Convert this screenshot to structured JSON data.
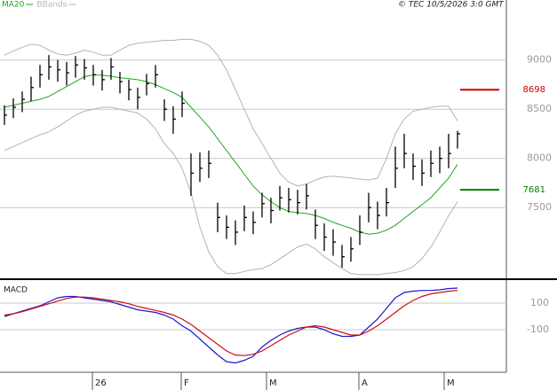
{
  "chart_data": [
    {
      "type": "ohlc",
      "copyright": "© TEC 10/5/2026 3:0 GMT",
      "xlim": [
        -0.5,
        56.5
      ],
      "ylim": [
        6790,
        9610
      ],
      "yticks": [
        7500,
        8000,
        8500,
        9000
      ],
      "grid": true,
      "bar_color": "#000000",
      "high": [
        8540,
        8610,
        8680,
        8830,
        8950,
        9050,
        9000,
        8980,
        9040,
        9010,
        8950,
        8900,
        9020,
        8880,
        8800,
        8720,
        8860,
        8950,
        8600,
        8530,
        8680,
        8050,
        8060,
        8080,
        7550,
        7420,
        7370,
        7520,
        7460,
        7650,
        7600,
        7720,
        7700,
        7680,
        7740,
        7480,
        7340,
        7280,
        7120,
        7200,
        7420,
        7650,
        7560,
        7700,
        8120,
        8250,
        8050,
        7990,
        8080,
        8120,
        8250,
        8280
      ],
      "low": [
        8340,
        8410,
        8470,
        8580,
        8720,
        8800,
        8780,
        8740,
        8820,
        8800,
        8740,
        8690,
        8800,
        8660,
        8590,
        8500,
        8640,
        8720,
        8380,
        8250,
        8420,
        7620,
        7760,
        7800,
        7250,
        7180,
        7120,
        7260,
        7230,
        7400,
        7340,
        7470,
        7450,
        7430,
        7480,
        7180,
        7060,
        7010,
        6890,
        6950,
        7120,
        7350,
        7280,
        7410,
        7700,
        7900,
        7780,
        7720,
        7810,
        7850,
        7900,
        8100
      ],
      "close": [
        8440,
        8520,
        8600,
        8720,
        8850,
        8930,
        8900,
        8870,
        8950,
        8920,
        8850,
        8800,
        8930,
        8780,
        8700,
        8620,
        8760,
        8850,
        8500,
        8400,
        8560,
        7850,
        7900,
        7950,
        7400,
        7300,
        7250,
        7400,
        7350,
        7540,
        7470,
        7600,
        7580,
        7550,
        7620,
        7320,
        7200,
        7150,
        7000,
        7080,
        7250,
        7500,
        7420,
        7550,
        7900,
        8050,
        7920,
        7850,
        7950,
        8000,
        8050,
        8250
      ],
      "series": [
        {
          "name": "MA20",
          "color": "#1fa51f",
          "values": [
            8520,
            8540,
            8560,
            8580,
            8600,
            8630,
            8680,
            8730,
            8780,
            8830,
            8850,
            8845,
            8835,
            8820,
            8810,
            8800,
            8780,
            8750,
            8710,
            8670,
            8620,
            8520,
            8420,
            8320,
            8200,
            8080,
            7960,
            7840,
            7720,
            7630,
            7560,
            7500,
            7460,
            7450,
            7440,
            7420,
            7390,
            7350,
            7320,
            7290,
            7250,
            7230,
            7240,
            7270,
            7320,
            7390,
            7460,
            7530,
            7600,
            7700,
            7800,
            7940
          ]
        },
        {
          "name": "BBands",
          "color": "#b4b4b4",
          "upper": [
            9050,
            9090,
            9130,
            9160,
            9150,
            9100,
            9060,
            9050,
            9070,
            9100,
            9080,
            9050,
            9050,
            9100,
            9150,
            9170,
            9180,
            9190,
            9200,
            9200,
            9210,
            9210,
            9190,
            9150,
            9050,
            8900,
            8700,
            8500,
            8300,
            8150,
            8000,
            7850,
            7760,
            7720,
            7740,
            7780,
            7810,
            7820,
            7810,
            7800,
            7790,
            7780,
            7800,
            8000,
            8250,
            8400,
            8480,
            8500,
            8520,
            8530,
            8530,
            8380
          ],
          "lower": [
            8080,
            8120,
            8160,
            8200,
            8240,
            8270,
            8320,
            8380,
            8440,
            8480,
            8500,
            8520,
            8520,
            8500,
            8480,
            8460,
            8400,
            8300,
            8150,
            8050,
            7900,
            7650,
            7300,
            7050,
            6900,
            6830,
            6830,
            6850,
            6870,
            6880,
            6920,
            6980,
            7040,
            7100,
            7130,
            7080,
            7000,
            6940,
            6880,
            6830,
            6820,
            6820,
            6820,
            6830,
            6840,
            6860,
            6900,
            6980,
            7100,
            7250,
            7420,
            7560
          ]
        }
      ],
      "levels": [
        {
          "value": 8698,
          "color": "#cc0000"
        },
        {
          "value": 7681,
          "color": "#008000"
        }
      ]
    },
    {
      "type": "line",
      "title": "MACD",
      "xlim": [
        -0.5,
        56.5
      ],
      "xticks": [
        {
          "value": 9.9,
          "label": "26"
        },
        {
          "value": 19.9,
          "label": "F"
        },
        {
          "value": 29.5,
          "label": "M"
        },
        {
          "value": 39.9,
          "label": "A"
        },
        {
          "value": 49.5,
          "label": "M"
        }
      ],
      "ylim": [
        -420,
        273
      ],
      "yticks": [
        100,
        -100
      ],
      "grid": true,
      "series": [
        {
          "color": "#1a1ad0",
          "values": [
            0,
            20,
            40,
            60,
            80,
            110,
            140,
            150,
            150,
            140,
            130,
            120,
            110,
            90,
            70,
            50,
            40,
            30,
            10,
            -20,
            -70,
            -110,
            -170,
            -230,
            -290,
            -340,
            -350,
            -330,
            -300,
            -230,
            -180,
            -140,
            -110,
            -90,
            -80,
            -80,
            -100,
            -130,
            -150,
            -150,
            -140,
            -80,
            -20,
            60,
            140,
            180,
            190,
            195,
            195,
            200,
            210,
            213
          ]
        },
        {
          "color": "#cc1010",
          "values": [
            10,
            20,
            35,
            55,
            75,
            95,
            115,
            135,
            145,
            145,
            140,
            130,
            120,
            110,
            95,
            75,
            60,
            45,
            30,
            10,
            -20,
            -60,
            -110,
            -160,
            -210,
            -260,
            -290,
            -295,
            -285,
            -260,
            -220,
            -180,
            -140,
            -110,
            -80,
            -70,
            -80,
            -100,
            -120,
            -140,
            -140,
            -110,
            -70,
            -20,
            30,
            80,
            120,
            150,
            170,
            180,
            190,
            195
          ]
        }
      ]
    }
  ]
}
